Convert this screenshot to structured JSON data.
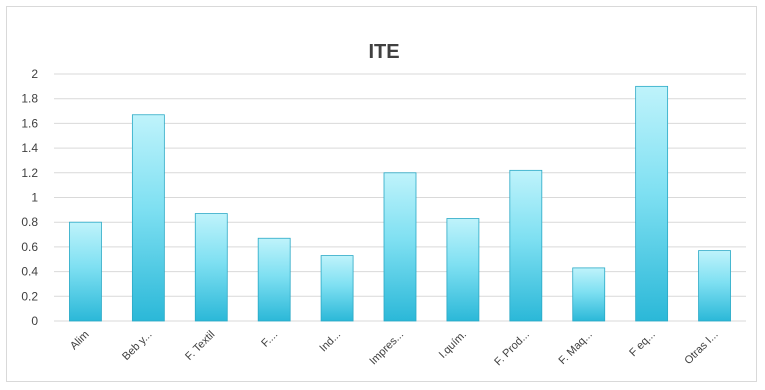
{
  "chart_data": {
    "type": "bar",
    "title": "ITE",
    "xlabel": "",
    "ylabel": "",
    "categories": [
      "Alim",
      "Beb y...",
      "F. Textil",
      "F....",
      "Ind...",
      "Impres...",
      "I.quím.",
      "F. Prod...",
      "F. Maq...",
      "F eq...",
      "Otras I..."
    ],
    "values": [
      0.8,
      1.67,
      0.87,
      0.67,
      0.53,
      1.2,
      0.83,
      1.22,
      0.43,
      1.9,
      0.57
    ],
    "ylim": [
      0,
      2
    ],
    "yticks": [
      "0",
      "0.2",
      "0.4",
      "0.6",
      "0.8",
      "1",
      "1.2",
      "1.4",
      "1.6",
      "1.8",
      "2"
    ],
    "grid": true,
    "legend": "none",
    "colors": {
      "bar_top": "#bff3fb",
      "bar_mid": "#7fe0f2",
      "bar_bottom": "#2bb8d8",
      "bar_stroke": "#2aa9c6",
      "grid": "#d9d9d9",
      "text": "#404040"
    }
  }
}
